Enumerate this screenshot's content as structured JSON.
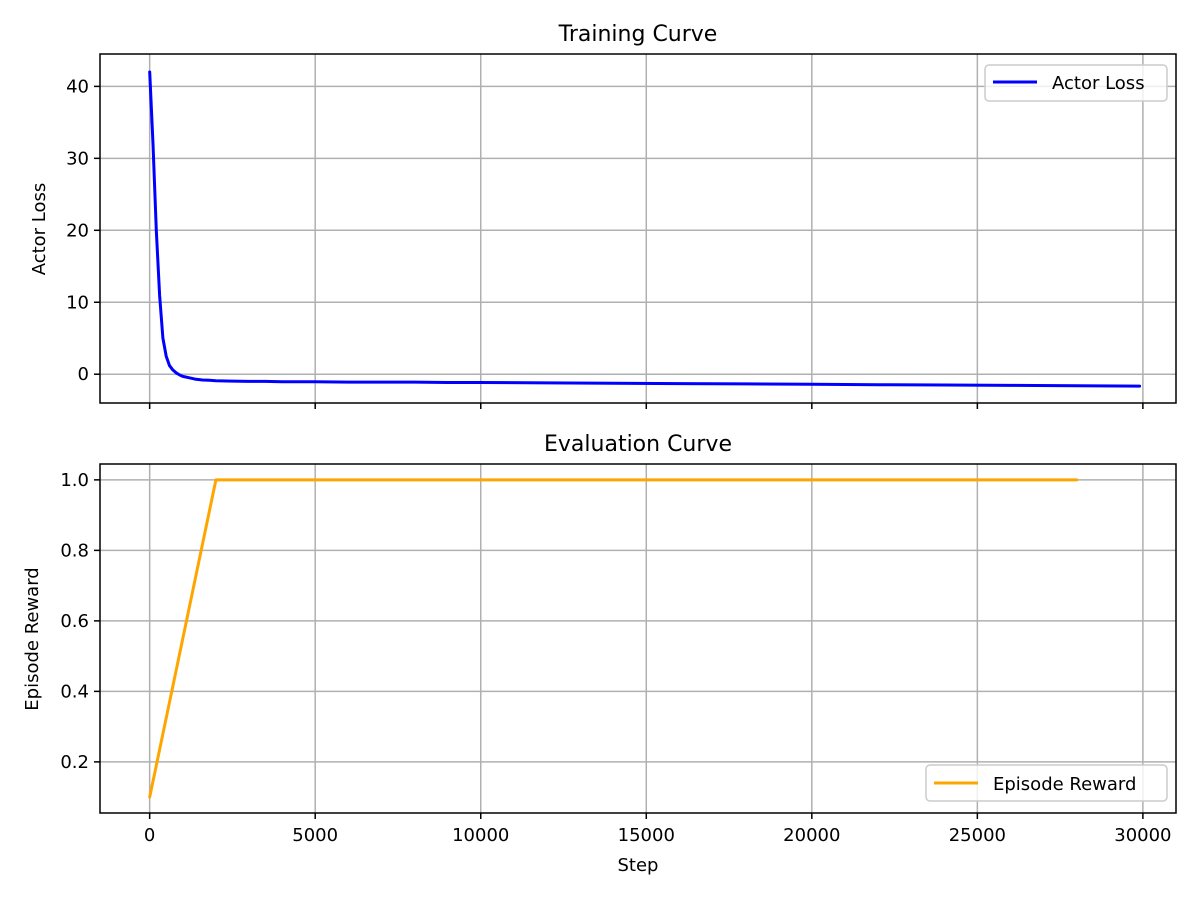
{
  "chart_data": [
    {
      "type": "line",
      "title": "Training Curve",
      "xlabel": "",
      "ylabel": "Actor Loss",
      "xlim": [
        -1500,
        31000
      ],
      "ylim": [
        -4,
        44.5
      ],
      "xticks": [
        0,
        5000,
        10000,
        15000,
        20000,
        25000,
        30000
      ],
      "xtick_labels_shown": false,
      "yticks": [
        0,
        10,
        20,
        30,
        40
      ],
      "ytick_labels": [
        "0",
        "10",
        "20",
        "30",
        "40"
      ],
      "grid": true,
      "legend_position": "upper right",
      "series": [
        {
          "name": "Actor Loss",
          "color": "#0000ff",
          "x": [
            0,
            100,
            200,
            300,
            400,
            500,
            600,
            700,
            800,
            900,
            1000,
            1200,
            1400,
            1600,
            1800,
            2000,
            2500,
            3000,
            3500,
            4000,
            5000,
            6000,
            7000,
            8000,
            9000,
            10000,
            12000,
            14000,
            16000,
            18000,
            20000,
            22000,
            24000,
            26000,
            28000,
            29900
          ],
          "y": [
            42,
            32,
            20,
            11,
            5,
            2.5,
            1.2,
            0.6,
            0.2,
            -0.1,
            -0.3,
            -0.5,
            -0.7,
            -0.8,
            -0.85,
            -0.9,
            -0.95,
            -1.0,
            -1.0,
            -1.05,
            -1.05,
            -1.1,
            -1.1,
            -1.1,
            -1.15,
            -1.15,
            -1.2,
            -1.25,
            -1.3,
            -1.35,
            -1.4,
            -1.45,
            -1.5,
            -1.55,
            -1.6,
            -1.65
          ]
        }
      ]
    },
    {
      "type": "line",
      "title": "Evaluation Curve",
      "xlabel": "Step",
      "ylabel": "Episode Reward",
      "xlim": [
        -1500,
        31000
      ],
      "ylim": [
        0.055,
        1.045
      ],
      "xticks": [
        0,
        5000,
        10000,
        15000,
        20000,
        25000,
        30000
      ],
      "xtick_labels": [
        "0",
        "5000",
        "10000",
        "15000",
        "20000",
        "25000",
        "30000"
      ],
      "yticks": [
        0.2,
        0.4,
        0.6,
        0.8,
        1.0
      ],
      "ytick_labels": [
        "0.2",
        "0.4",
        "0.6",
        "0.8",
        "1.0"
      ],
      "grid": true,
      "legend_position": "lower right",
      "series": [
        {
          "name": "Episode Reward",
          "color": "#ffa500",
          "x": [
            0,
            2000,
            4000,
            6000,
            8000,
            10000,
            12000,
            14000,
            16000,
            18000,
            20000,
            22000,
            24000,
            26000,
            28000
          ],
          "y": [
            0.1,
            1.0,
            1.0,
            1.0,
            1.0,
            1.0,
            1.0,
            1.0,
            1.0,
            1.0,
            1.0,
            1.0,
            1.0,
            1.0,
            1.0
          ]
        }
      ]
    }
  ]
}
